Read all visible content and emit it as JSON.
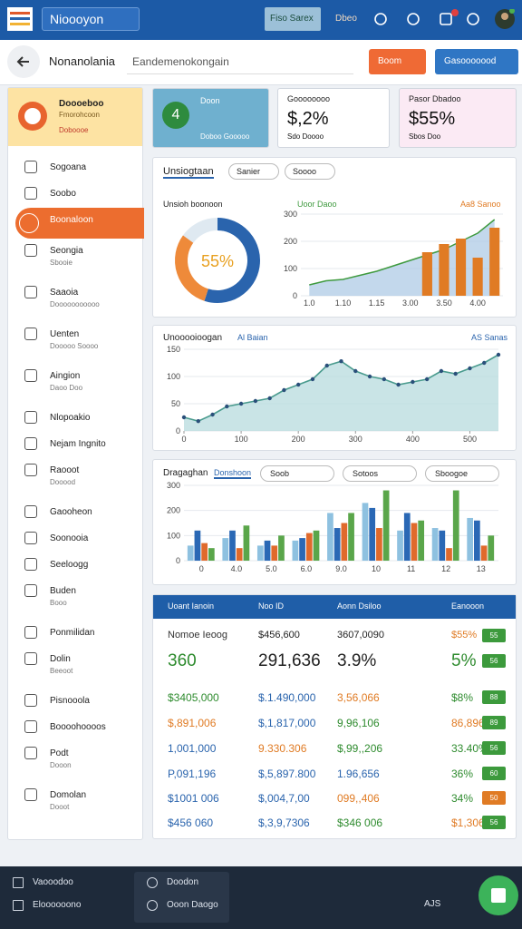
{
  "header": {
    "app_name": "Nioooyon",
    "tabs": [
      "Fiso Sarex",
      "Dbeo"
    ]
  },
  "toolbar": {
    "title": "Nonanolania",
    "search": "Eandemenokongain",
    "buttons": [
      "Boom",
      "Gasooooood"
    ]
  },
  "sidebar": {
    "card": {
      "title": "Doooeboo",
      "subtitle": "Fmorohcoon",
      "meta": "Doboooe"
    },
    "items": [
      {
        "label": "Sogoana"
      },
      {
        "label": "Soobo"
      },
      {
        "label": "Boonaloon",
        "active": true
      },
      {
        "label": "Seongia",
        "sub": "Sbooie"
      },
      {
        "label": "Saaoia",
        "sub": "Dooooooooooo"
      },
      {
        "label": "Uenten",
        "sub": "Dooooo Soooo"
      },
      {
        "label": "Aingion",
        "sub": "Daoo Doo"
      },
      {
        "label": "Nlopoakio"
      },
      {
        "label": "Nejam Ingnito"
      },
      {
        "label": "Raooot",
        "sub": "Dooood"
      },
      {
        "label": "Gaooheon"
      },
      {
        "label": "Soonooia"
      },
      {
        "label": "Seeloogg"
      },
      {
        "label": "Buden",
        "sub": "Booo"
      },
      {
        "label": "Ponmilidan"
      },
      {
        "label": "Dolin",
        "sub": "Beeoot"
      },
      {
        "label": "Pisnooola"
      },
      {
        "label": "Boooohoooos"
      },
      {
        "label": "Podt",
        "sub": "Dooon"
      },
      {
        "label": "Domolan",
        "sub": "Dooot"
      }
    ]
  },
  "stats": [
    {
      "label": "Doon",
      "value": "4",
      "note": "Doboo Gooooo"
    },
    {
      "label": "Goooooooo",
      "value": "$,2%",
      "note": "Sdo Doooo"
    },
    {
      "label": "Pasor Dbadoo",
      "value": "$55%",
      "note": "Sbos Doo"
    }
  ],
  "panel_a": {
    "title": "Unsiogtaan",
    "filters": [
      "Sanier",
      "Soooo"
    ],
    "donut": {
      "title": "Unsioh boonoon",
      "label": "55%",
      "values": [
        55,
        30,
        15
      ],
      "colors": [
        "#2a64ad",
        "#ee8a3a",
        "#dfe9f1"
      ]
    },
    "chart": {
      "type": "combo",
      "categories": [
        "1.0",
        null,
        "1.10",
        null,
        "1.15",
        null,
        "3.00",
        null,
        "3.50",
        null,
        "4.00",
        null
      ],
      "ylim": [
        0,
        300
      ],
      "yticks": [
        0,
        100,
        200,
        300
      ],
      "series": [
        {
          "name": "Uoor Daoo",
          "color": "#3f9a3f",
          "type": "area",
          "values": [
            40,
            55,
            60,
            75,
            90,
            110,
            130,
            150,
            170,
            200,
            230,
            280
          ]
        },
        {
          "name": "Aa8 Sanoo",
          "color": "#e07b24",
          "type": "bar",
          "values": [
            null,
            null,
            null,
            null,
            null,
            null,
            null,
            160,
            190,
            210,
            140,
            250
          ]
        }
      ]
    }
  },
  "panel_b": {
    "title": "Unooooioogan",
    "legend_left": "Al Baian",
    "legend_right": "AS Sanas",
    "chart": {
      "type": "line",
      "color": "#4a9b8e",
      "xlim": [
        0,
        550
      ],
      "xticks": [
        0,
        100,
        200,
        300,
        400,
        500
      ],
      "ylim": [
        0,
        150
      ],
      "yticks": [
        0,
        50,
        100,
        150
      ],
      "x": [
        0,
        25,
        50,
        75,
        100,
        125,
        150,
        175,
        200,
        225,
        250,
        275,
        300,
        325,
        350,
        375,
        400,
        425,
        450,
        475,
        500,
        525,
        550
      ],
      "values": [
        25,
        18,
        30,
        45,
        50,
        55,
        60,
        75,
        85,
        95,
        120,
        128,
        110,
        100,
        95,
        85,
        90,
        95,
        110,
        105,
        115,
        125,
        140
      ]
    }
  },
  "panel_c": {
    "title": "Dragaghan",
    "tab": "Donshoon",
    "filters": [
      "Soob",
      "Sotoos",
      "Sboogoe"
    ],
    "chart": {
      "type": "bar",
      "categories": [
        "0",
        "4.0",
        "5.0",
        "6.0",
        "9.0",
        "10",
        "11",
        "12",
        "13"
      ],
      "ylim": [
        0,
        300
      ],
      "yticks": [
        0,
        100,
        200,
        300
      ],
      "series": [
        {
          "color": "#8ec1e0",
          "values": [
            60,
            90,
            60,
            80,
            190,
            230,
            120,
            130,
            170
          ]
        },
        {
          "color": "#2a68b5",
          "values": [
            120,
            120,
            80,
            90,
            130,
            210,
            190,
            120,
            160
          ]
        },
        {
          "color": "#e06a2c",
          "values": [
            70,
            50,
            60,
            110,
            150,
            130,
            150,
            50,
            60
          ]
        },
        {
          "color": "#5aa64a",
          "values": [
            50,
            140,
            100,
            120,
            190,
            280,
            160,
            280,
            100
          ]
        }
      ]
    }
  },
  "table": {
    "columns": [
      "Uoant Ianoin",
      "Noo ID",
      "Aonn Dsiloo",
      "Eanooon"
    ],
    "rows": [
      {
        "cells": [
          "Nomoe Ieoog",
          "$456,600",
          "3607,0090",
          "$55%"
        ],
        "colors": [
          "#333333",
          "#222222",
          "#222222",
          "#e07b24"
        ],
        "badge": "55",
        "badge_color": "#3c9a3c"
      },
      {
        "cells": [
          "360",
          "291,636",
          "3.9%",
          "5%"
        ],
        "colors": [
          "#2e8b2e",
          "#222222",
          "#222222",
          "#2e8b2e"
        ],
        "badge": "56",
        "badge_color": "#3c9a3c",
        "big": true
      },
      {
        "cells": [
          "$3405,000",
          "$.1.490,000",
          "3,56,066",
          "$8%"
        ],
        "colors": [
          "#2e8b2e",
          "#2a64ad",
          "#e07b24",
          "#2e8b2e"
        ],
        "badge": "88",
        "badge_color": "#3c9a3c"
      },
      {
        "cells": [
          "$,891,006",
          "$,1,817,000",
          "9,96,106",
          "86,896"
        ],
        "colors": [
          "#e07b24",
          "#2a64ad",
          "#2e8b2e",
          "#e07b24"
        ],
        "badge": "89",
        "badge_color": "#3c9a3c"
      },
      {
        "cells": [
          "1,001,000",
          "9.330.306",
          "$,99,,206",
          "33.40%"
        ],
        "colors": [
          "#2a64ad",
          "#e07b24",
          "#2e8b2e",
          "#2e8b2e"
        ],
        "badge": "56",
        "badge_color": "#3c9a3c"
      },
      {
        "cells": [
          "P,091,196",
          "$,5,897.800",
          "1.96,656",
          "36%"
        ],
        "colors": [
          "#2a64ad",
          "#2a64ad",
          "#2a64ad",
          "#2e8b2e"
        ],
        "badge": "60",
        "badge_color": "#3c9a3c"
      },
      {
        "cells": [
          "$1001 006",
          "$,004,7,00",
          "099,,406",
          "34%"
        ],
        "colors": [
          "#2a64ad",
          "#2a64ad",
          "#e07b24",
          "#2e8b2e"
        ],
        "badge": "50",
        "badge_color": "#e07b24"
      },
      {
        "cells": [
          "$456 060",
          "$,3,9,7306",
          "$346 006",
          "$1,306"
        ],
        "colors": [
          "#2a64ad",
          "#2a64ad",
          "#2e8b2e",
          "#e07b24"
        ],
        "badge": "56",
        "badge_color": "#3c9a3c"
      }
    ]
  },
  "footer": {
    "items": [
      "Vaooodoo",
      "Eloooooono",
      "Doodon",
      "Ooon Daogo"
    ],
    "status": "AJS"
  }
}
